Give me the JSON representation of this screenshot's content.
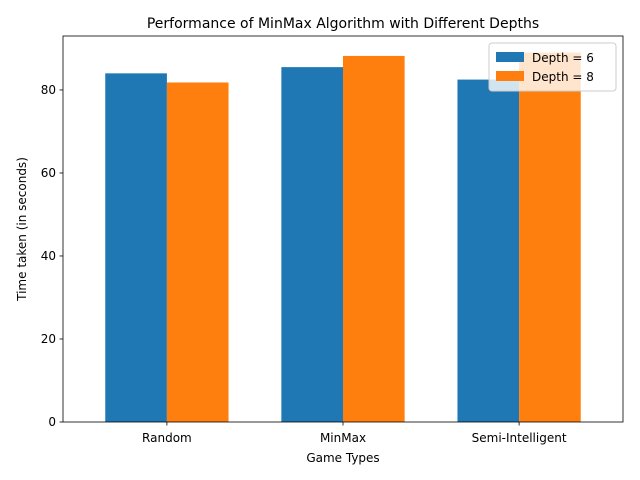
{
  "chart_data": {
    "type": "bar",
    "title": "Performance of MinMax Algorithm with Different Depths",
    "xlabel": "Game Types",
    "ylabel": "Time taken (in seconds)",
    "categories": [
      "Random",
      "MinMax",
      "Semi-Intelligent"
    ],
    "series": [
      {
        "name": "Depth = 6",
        "values": [
          84.0,
          85.5,
          82.5
        ],
        "color": "#1f77b4"
      },
      {
        "name": "Depth = 8",
        "values": [
          81.8,
          88.2,
          89.0
        ],
        "color": "#ff7f0e"
      }
    ],
    "ylim": [
      0,
      93
    ],
    "yticks": [
      0,
      20,
      40,
      60,
      80
    ],
    "ytick_labels": [
      "0",
      "20",
      "40",
      "60",
      "80"
    ],
    "legend_position": "top-right",
    "grid": false
  }
}
